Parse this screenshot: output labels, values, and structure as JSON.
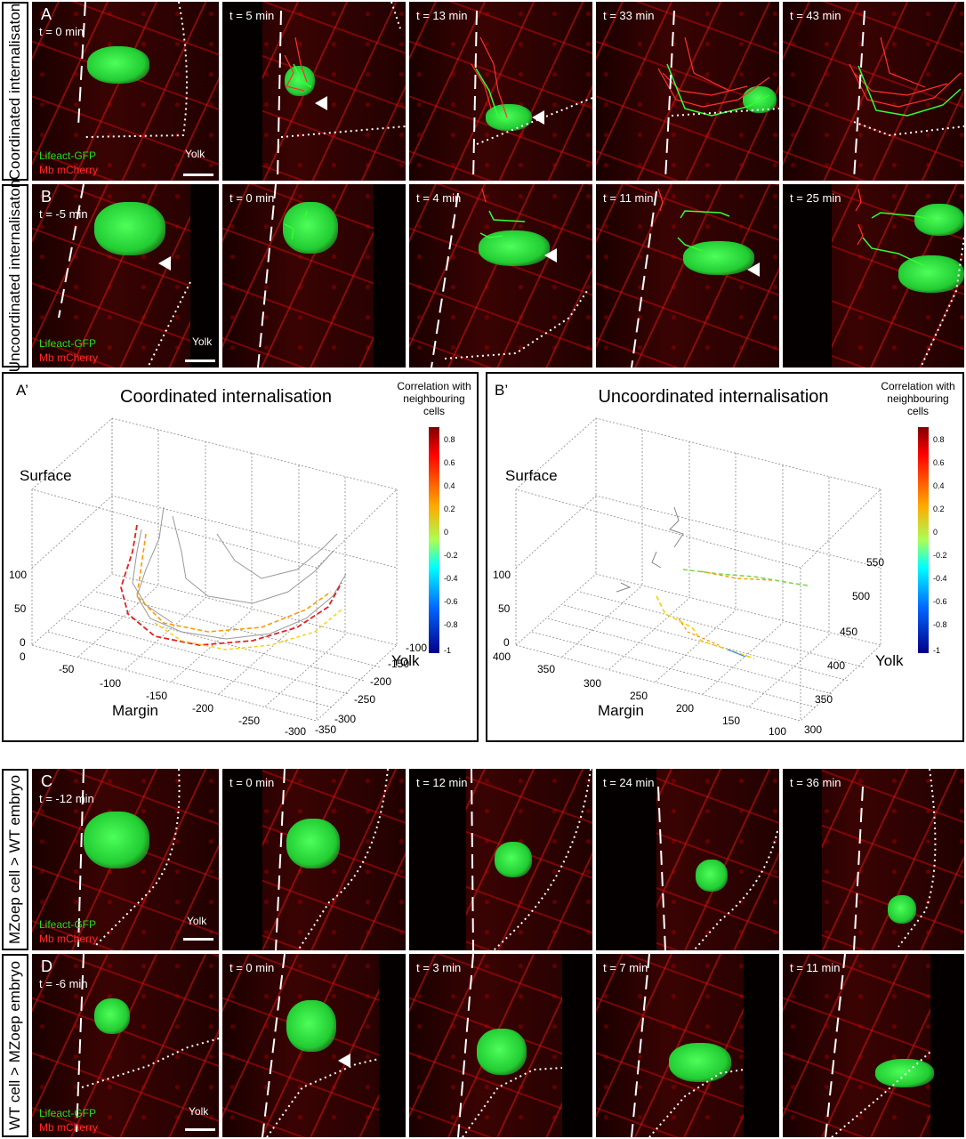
{
  "rows": {
    "A": {
      "label": "Coordinated internalisaton",
      "letter": "A",
      "times": [
        "t = 0 min",
        "t = 5 min",
        "t = 13 min",
        "t = 33 min",
        "t = 43 min"
      ]
    },
    "B": {
      "label": "Uncoordinated internalisaton",
      "letter": "B",
      "times": [
        "t = -5 min",
        "t = 0 min",
        "t = 4 min",
        "t = 11 min",
        "t = 25 min"
      ]
    },
    "C": {
      "label": "MZoep cell > WT embryo",
      "letter": "C",
      "times": [
        "t = -12 min",
        "t = 0 min",
        "t = 12 min",
        "t = 24 min",
        "t = 36 min"
      ]
    },
    "D": {
      "label": "WT cell > MZoep embryo",
      "letter": "D",
      "times": [
        "t = -6 min",
        "t = 0 min",
        "t = 3 min",
        "t = 7 min",
        "t = 11 min"
      ]
    }
  },
  "legend": {
    "green": "Lifeact-GFP",
    "red": "Mb mCherry",
    "yolk": "Yolk"
  },
  "plots": {
    "a": {
      "letter": "A’",
      "title": "Coordinated internalisation",
      "surface": "Surface",
      "xlabel": "Margin",
      "ylabel": "Yolk",
      "zticks": [
        "100",
        "50",
        "0"
      ],
      "xticks": [
        "0",
        "-50",
        "-100",
        "-150",
        "-200",
        "-250",
        "-300"
      ],
      "yticks": [
        "-100",
        "-150",
        "-200",
        "-250",
        "-300",
        "-350"
      ]
    },
    "b": {
      "letter": "B’",
      "title": "Uncoordinated internalisation",
      "surface": "Surface",
      "xlabel": "Margin",
      "ylabel": "Yolk",
      "zticks": [
        "100",
        "50",
        "0"
      ],
      "xticks": [
        "400",
        "350",
        "300",
        "250",
        "200",
        "150",
        "100"
      ],
      "yticks": [
        "550",
        "500",
        "450",
        "400",
        "350",
        "300"
      ]
    }
  },
  "colorbar": {
    "title_line1": "Correlation with",
    "title_line2": "neighbouring",
    "title_line3": "cells",
    "ticks": [
      "0.8",
      "0.6",
      "0.4",
      "0.2",
      "0",
      "-0.2",
      "-0.4",
      "-0.6",
      "-0.8",
      "-1"
    ]
  },
  "colors": {
    "green_label": "#22dd22",
    "red_label": "#ff2a2a"
  }
}
